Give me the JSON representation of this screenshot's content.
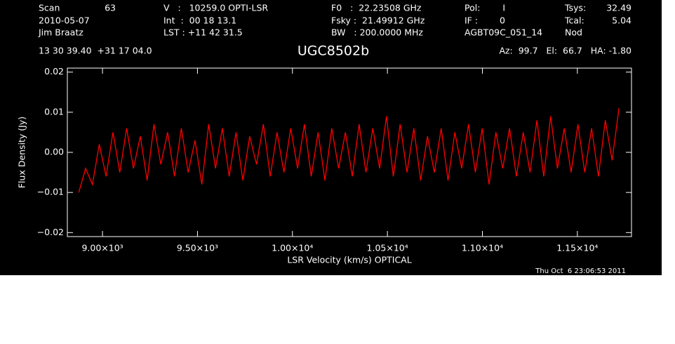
{
  "chart_data": {
    "type": "line",
    "title": "UGC8502b",
    "header": [
      "Scan",
      "63",
      "2010-05-07",
      "Jim Braatz",
      "V   :   10259.0 OPTI-LSR",
      "Int  :  00 18 13.1",
      "LST : +11 42 31.5",
      "F0   :  22.23508 GHz",
      "Fsky :  21.49912 GHz",
      "BW   : 200.0000 MHz",
      "Pol:",
      "I",
      "IF :",
      "0",
      "AGBT09C_051_14",
      "Nod",
      "Tsys:",
      "32.49",
      "Tcal:",
      "5.04",
      "13 30 39.40  +31 17 04.0",
      "Az:  99.7   El:  66.7   HA: -1.80"
    ],
    "timestamp": "Thu Oct  6 23:06:53 2011",
    "x_label": "LSR Velocity (km/s) OPTICAL",
    "y_label": "Flux Density (Jy)",
    "xlim": [
      8815,
      11785
    ],
    "ylim": [
      -0.021,
      0.021
    ],
    "xticks": [
      {
        "value": 9000,
        "label": "9.00×10³"
      },
      {
        "value": 9500,
        "label": "9.50×10³"
      },
      {
        "value": 10000,
        "label": "1.00×10⁴"
      },
      {
        "value": 10500,
        "label": "1.05×10⁴"
      },
      {
        "value": 11000,
        "label": "1.10×10⁴"
      },
      {
        "value": 11500,
        "label": "1.15×10⁴"
      }
    ],
    "yticks": [
      {
        "value": 0.02,
        "label": "0.02"
      },
      {
        "value": 0.01,
        "label": "0.01"
      },
      {
        "value": 0,
        "label": "0.00"
      },
      {
        "value": -0.01,
        "label": "−0.01"
      },
      {
        "value": -0.02,
        "label": "−0.02"
      }
    ],
    "x": [
      8875,
      8911,
      8947,
      8983,
      9019,
      9055,
      9091,
      9127,
      9163,
      9199,
      9235,
      9271,
      9307,
      9343,
      9379,
      9415,
      9451,
      9487,
      9523,
      9559,
      9595,
      9631,
      9667,
      9703,
      9739,
      9775,
      9811,
      9847,
      9883,
      9919,
      9955,
      9991,
      10027,
      10063,
      10099,
      10135,
      10171,
      10207,
      10243,
      10279,
      10315,
      10351,
      10387,
      10423,
      10459,
      10495,
      10531,
      10567,
      10603,
      10639,
      10675,
      10711,
      10747,
      10783,
      10819,
      10855,
      10891,
      10927,
      10963,
      10999,
      11035,
      11071,
      11107,
      11143,
      11179,
      11215,
      11251,
      11287,
      11323,
      11359,
      11395,
      11431,
      11467,
      11503,
      11539,
      11575,
      11611,
      11647,
      11683,
      11719
    ],
    "series": [
      {
        "color": "#ff0000",
        "values": [
          -0.01,
          -0.004,
          -0.008,
          0.002,
          -0.006,
          0.005,
          -0.005,
          0.006,
          -0.004,
          0.004,
          -0.007,
          0.007,
          -0.003,
          0.005,
          -0.006,
          0.006,
          -0.005,
          0.003,
          -0.008,
          0.007,
          -0.004,
          0.006,
          -0.006,
          0.005,
          -0.007,
          0.004,
          -0.003,
          0.007,
          -0.006,
          0.005,
          -0.005,
          0.006,
          -0.004,
          0.007,
          -0.006,
          0.005,
          -0.007,
          0.006,
          -0.004,
          0.005,
          -0.006,
          0.007,
          -0.005,
          0.006,
          -0.004,
          0.009,
          -0.006,
          0.007,
          -0.005,
          0.006,
          -0.007,
          0.004,
          -0.005,
          0.006,
          -0.007,
          0.005,
          -0.004,
          0.007,
          -0.005,
          0.006,
          -0.008,
          0.005,
          -0.004,
          0.006,
          -0.006,
          0.005,
          -0.005,
          0.008,
          -0.006,
          0.009,
          -0.004,
          0.006,
          -0.005,
          0.007,
          -0.005,
          0.006,
          -0.006,
          0.008,
          -0.002,
          0.011
        ]
      }
    ]
  }
}
